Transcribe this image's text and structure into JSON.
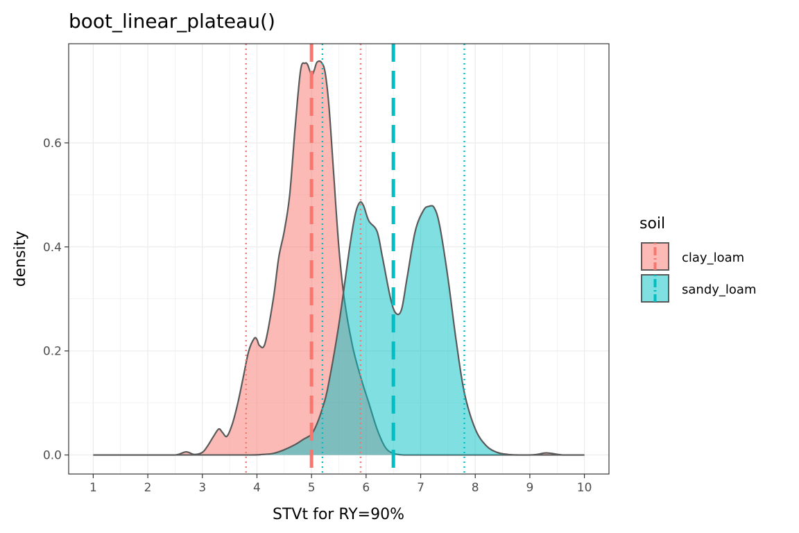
{
  "chart_data": {
    "type": "area",
    "title": "boot_linear_plateau()",
    "xlabel": "STVt for RY=90%",
    "ylabel": "density",
    "xlim": [
      0.55,
      10.45
    ],
    "ylim": [
      -0.0366,
      0.7906
    ],
    "x_ticks": [
      1,
      2,
      3,
      4,
      5,
      6,
      7,
      8,
      9,
      10
    ],
    "x_tick_labels": [
      "1",
      "2",
      "3",
      "4",
      "5",
      "6",
      "7",
      "8",
      "9",
      "10"
    ],
    "y_ticks": [
      0.0,
      0.2,
      0.4,
      0.6
    ],
    "y_tick_labels": [
      "0.0",
      "0.2",
      "0.4",
      "0.6"
    ],
    "grid": true,
    "legend": {
      "title": "soil",
      "position": "right"
    },
    "series": [
      {
        "name": "clay_loam",
        "color": "#F8766D",
        "fill_opacity": 0.5,
        "x": [
          1.0,
          2.0,
          2.5,
          2.7,
          2.85,
          3.0,
          3.1,
          3.2,
          3.3,
          3.37,
          3.45,
          3.55,
          3.65,
          3.75,
          3.85,
          3.95,
          4.0,
          4.05,
          4.15,
          4.3,
          4.4,
          4.5,
          4.6,
          4.7,
          4.8,
          4.88,
          4.93,
          5.0,
          5.05,
          5.1,
          5.18,
          5.25,
          5.32,
          5.4,
          5.5,
          5.6,
          5.75,
          5.9,
          6.05,
          6.2,
          6.35,
          6.5,
          6.7,
          7.0,
          8.0,
          9.0,
          9.3,
          9.6,
          10.0
        ],
        "y": [
          0.0,
          0.0,
          0.0,
          0.006,
          0.001,
          0.005,
          0.018,
          0.035,
          0.05,
          0.043,
          0.036,
          0.06,
          0.1,
          0.15,
          0.2,
          0.224,
          0.222,
          0.21,
          0.215,
          0.3,
          0.38,
          0.43,
          0.5,
          0.63,
          0.74,
          0.753,
          0.75,
          0.73,
          0.74,
          0.755,
          0.755,
          0.735,
          0.67,
          0.55,
          0.4,
          0.3,
          0.21,
          0.15,
          0.1,
          0.05,
          0.015,
          0.003,
          0.0,
          0.0,
          0.0,
          0.0,
          0.004,
          0.0,
          0.0
        ]
      },
      {
        "name": "sandy_loam",
        "color": "#00BFC4",
        "fill_opacity": 0.5,
        "x": [
          1.0,
          3.0,
          3.9,
          4.1,
          4.3,
          4.5,
          4.7,
          4.85,
          5.0,
          5.1,
          5.2,
          5.3,
          5.5,
          5.7,
          5.8,
          5.88,
          5.95,
          6.05,
          6.2,
          6.3,
          6.45,
          6.55,
          6.65,
          6.75,
          6.9,
          7.05,
          7.15,
          7.25,
          7.35,
          7.5,
          7.65,
          7.8,
          8.0,
          8.2,
          8.4,
          8.6,
          8.8,
          9.0,
          10.0
        ],
        "y": [
          0.0,
          0.0,
          0.0,
          0.001,
          0.003,
          0.01,
          0.02,
          0.03,
          0.04,
          0.06,
          0.09,
          0.13,
          0.25,
          0.4,
          0.462,
          0.485,
          0.48,
          0.45,
          0.43,
          0.38,
          0.3,
          0.272,
          0.28,
          0.34,
          0.43,
          0.47,
          0.478,
          0.475,
          0.44,
          0.34,
          0.22,
          0.12,
          0.05,
          0.018,
          0.005,
          0.001,
          0.0,
          0.0,
          0.0
        ]
      }
    ],
    "vlines": [
      {
        "series": "clay_loam",
        "x": 3.8,
        "style": "dotted"
      },
      {
        "series": "clay_loam",
        "x": 5.0,
        "style": "dashed"
      },
      {
        "series": "clay_loam",
        "x": 5.9,
        "style": "dotted"
      },
      {
        "series": "sandy_loam",
        "x": 5.2,
        "style": "dotted"
      },
      {
        "series": "sandy_loam",
        "x": 6.5,
        "style": "dashed"
      },
      {
        "series": "sandy_loam",
        "x": 7.8,
        "style": "dotted"
      }
    ]
  }
}
